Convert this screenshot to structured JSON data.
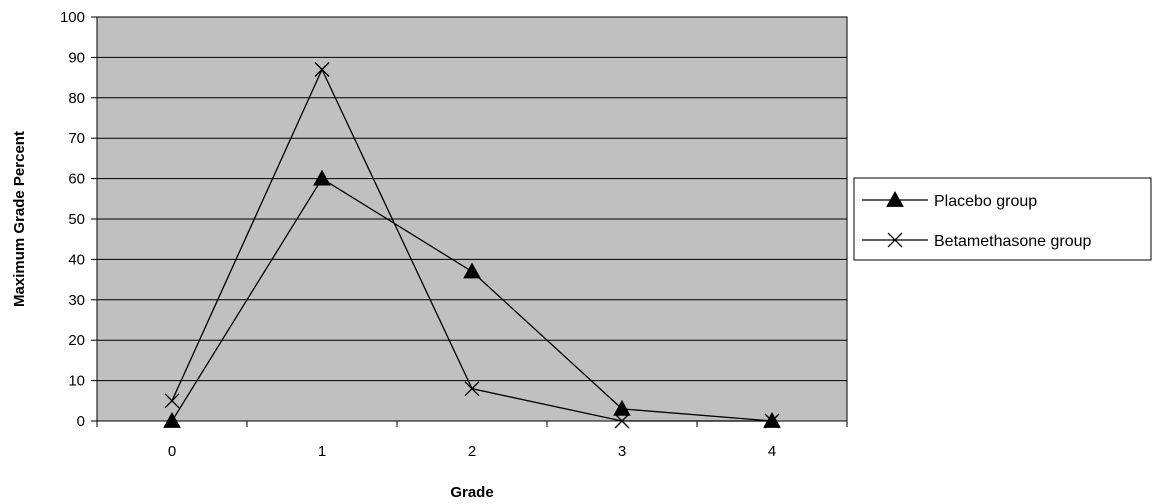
{
  "chart_data": {
    "type": "line",
    "title": "",
    "xlabel": "Grade",
    "ylabel": "Maximum Grade Percent",
    "categories": [
      "0",
      "1",
      "2",
      "3",
      "4"
    ],
    "ylim": [
      0,
      100
    ],
    "ytick_step": 10,
    "grid": true,
    "legend_position": "right",
    "plot_background": "#c0c0c0",
    "series": [
      {
        "name": "Placebo group",
        "marker": "triangle",
        "color": "#000000",
        "values": [
          0,
          60,
          37,
          3,
          0
        ]
      },
      {
        "name": "Betamethasone group",
        "marker": "x",
        "color": "#000000",
        "values": [
          5,
          87,
          8,
          0,
          0
        ]
      }
    ]
  }
}
